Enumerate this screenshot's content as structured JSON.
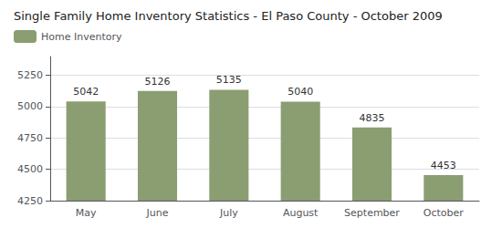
{
  "chart_data": {
    "type": "bar",
    "title": "Single Family Home Inventory Statistics - El Paso County - October 2009",
    "categories": [
      "May",
      "June",
      "July",
      "August",
      "September",
      "October"
    ],
    "series": [
      {
        "name": "Home Inventory",
        "color": "#8a9e72",
        "values": [
          5042,
          5126,
          5135,
          5040,
          4835,
          4453
        ]
      }
    ],
    "ylim": [
      4250,
      5400
    ],
    "yticks": [
      4250,
      4500,
      4750,
      5000,
      5250
    ],
    "grid": true,
    "legend": "upper left",
    "data_labels": true
  }
}
